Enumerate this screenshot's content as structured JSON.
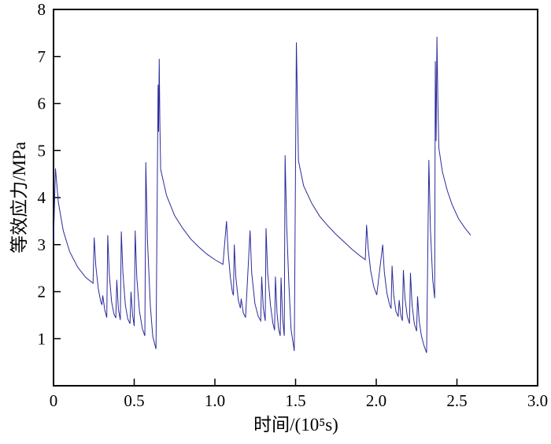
{
  "figure": {
    "xlabel": "时间/(10⁵s)",
    "ylabel": "等效应力/MPa",
    "background": "#ffffff"
  },
  "chart_data": {
    "type": "line",
    "title": "",
    "xlabel": "时间/(10⁵s)",
    "ylabel": "等效应力/MPa",
    "xlim": [
      0,
      3.0
    ],
    "ylim": [
      0,
      8
    ],
    "x_ticks": [
      0,
      0.5,
      1.0,
      1.5,
      2.0,
      2.5,
      3.0
    ],
    "x_tick_labels": [
      "0",
      "0.5",
      "1.0",
      "1.5",
      "2.0",
      "2.5",
      "3.0"
    ],
    "y_ticks": [
      1,
      2,
      3,
      4,
      5,
      6,
      7,
      8
    ],
    "y_tick_labels": [
      "1",
      "2",
      "3",
      "4",
      "5",
      "6",
      "7",
      "8"
    ],
    "grid": false,
    "legend": null,
    "line_color": "#2b2b9b",
    "axis_color": "#000000",
    "series": [
      {
        "name": "等效应力",
        "points": [
          [
            0.0,
            3.05
          ],
          [
            0.012,
            4.62
          ],
          [
            0.03,
            3.9
          ],
          [
            0.06,
            3.3
          ],
          [
            0.1,
            2.85
          ],
          [
            0.15,
            2.52
          ],
          [
            0.2,
            2.3
          ],
          [
            0.245,
            2.18
          ],
          [
            0.252,
            3.15
          ],
          [
            0.262,
            2.55
          ],
          [
            0.278,
            2.05
          ],
          [
            0.292,
            1.8
          ],
          [
            0.3,
            1.72
          ],
          [
            0.305,
            1.92
          ],
          [
            0.318,
            1.6
          ],
          [
            0.33,
            1.45
          ],
          [
            0.336,
            3.2
          ],
          [
            0.346,
            2.35
          ],
          [
            0.36,
            1.78
          ],
          [
            0.375,
            1.52
          ],
          [
            0.386,
            1.44
          ],
          [
            0.392,
            2.25
          ],
          [
            0.402,
            1.62
          ],
          [
            0.414,
            1.4
          ],
          [
            0.42,
            3.28
          ],
          [
            0.43,
            2.4
          ],
          [
            0.445,
            1.72
          ],
          [
            0.46,
            1.42
          ],
          [
            0.474,
            1.32
          ],
          [
            0.48,
            2.0
          ],
          [
            0.49,
            1.5
          ],
          [
            0.5,
            1.27
          ],
          [
            0.506,
            3.3
          ],
          [
            0.516,
            2.3
          ],
          [
            0.532,
            1.6
          ],
          [
            0.55,
            1.22
          ],
          [
            0.566,
            1.06
          ],
          [
            0.572,
            4.75
          ],
          [
            0.582,
            3.1
          ],
          [
            0.6,
            1.7
          ],
          [
            0.615,
            1.05
          ],
          [
            0.635,
            0.78
          ],
          [
            0.648,
            6.4
          ],
          [
            0.651,
            5.4
          ],
          [
            0.655,
            6.95
          ],
          [
            0.659,
            5.6
          ],
          [
            0.664,
            4.6
          ],
          [
            0.7,
            4.05
          ],
          [
            0.75,
            3.62
          ],
          [
            0.8,
            3.35
          ],
          [
            0.85,
            3.12
          ],
          [
            0.9,
            2.95
          ],
          [
            0.95,
            2.8
          ],
          [
            1.0,
            2.68
          ],
          [
            1.05,
            2.58
          ],
          [
            1.072,
            3.5
          ],
          [
            1.082,
            2.85
          ],
          [
            1.096,
            2.3
          ],
          [
            1.108,
            2.0
          ],
          [
            1.115,
            1.92
          ],
          [
            1.12,
            3.0
          ],
          [
            1.13,
            2.3
          ],
          [
            1.145,
            1.82
          ],
          [
            1.158,
            1.65
          ],
          [
            1.163,
            1.85
          ],
          [
            1.176,
            1.55
          ],
          [
            1.19,
            1.45
          ],
          [
            1.218,
            3.3
          ],
          [
            1.228,
            2.4
          ],
          [
            1.248,
            1.75
          ],
          [
            1.268,
            1.48
          ],
          [
            1.284,
            1.38
          ],
          [
            1.29,
            2.32
          ],
          [
            1.3,
            1.65
          ],
          [
            1.312,
            1.38
          ],
          [
            1.317,
            3.35
          ],
          [
            1.327,
            2.4
          ],
          [
            1.345,
            1.7
          ],
          [
            1.36,
            1.32
          ],
          [
            1.37,
            1.18
          ],
          [
            1.375,
            2.32
          ],
          [
            1.385,
            1.55
          ],
          [
            1.395,
            1.2
          ],
          [
            1.405,
            1.06
          ],
          [
            1.41,
            2.3
          ],
          [
            1.42,
            1.42
          ],
          [
            1.43,
            1.06
          ],
          [
            1.435,
            4.9
          ],
          [
            1.445,
            3.4
          ],
          [
            1.458,
            2.2
          ],
          [
            1.472,
            1.2
          ],
          [
            1.492,
            0.74
          ],
          [
            1.505,
            7.3
          ],
          [
            1.512,
            5.9
          ],
          [
            1.518,
            4.78
          ],
          [
            1.55,
            4.25
          ],
          [
            1.6,
            3.88
          ],
          [
            1.65,
            3.6
          ],
          [
            1.7,
            3.4
          ],
          [
            1.75,
            3.22
          ],
          [
            1.8,
            3.06
          ],
          [
            1.85,
            2.9
          ],
          [
            1.9,
            2.76
          ],
          [
            1.932,
            2.68
          ],
          [
            1.94,
            3.42
          ],
          [
            1.95,
            2.92
          ],
          [
            1.965,
            2.45
          ],
          [
            1.985,
            2.1
          ],
          [
            2.003,
            1.93
          ],
          [
            2.04,
            3.0
          ],
          [
            2.05,
            2.42
          ],
          [
            2.066,
            1.97
          ],
          [
            2.082,
            1.73
          ],
          [
            2.092,
            1.64
          ],
          [
            2.098,
            2.55
          ],
          [
            2.108,
            1.93
          ],
          [
            2.122,
            1.58
          ],
          [
            2.136,
            1.47
          ],
          [
            2.142,
            1.82
          ],
          [
            2.152,
            1.5
          ],
          [
            2.162,
            1.38
          ],
          [
            2.168,
            2.46
          ],
          [
            2.178,
            1.86
          ],
          [
            2.192,
            1.48
          ],
          [
            2.206,
            1.32
          ],
          [
            2.212,
            2.4
          ],
          [
            2.222,
            1.72
          ],
          [
            2.236,
            1.32
          ],
          [
            2.25,
            1.16
          ],
          [
            2.256,
            1.9
          ],
          [
            2.266,
            1.38
          ],
          [
            2.28,
            1.06
          ],
          [
            2.296,
            0.85
          ],
          [
            2.312,
            0.7
          ],
          [
            2.326,
            4.8
          ],
          [
            2.336,
            3.3
          ],
          [
            2.35,
            2.25
          ],
          [
            2.362,
            1.86
          ],
          [
            2.366,
            6.9
          ],
          [
            2.371,
            5.2
          ],
          [
            2.376,
            7.42
          ],
          [
            2.382,
            6.0
          ],
          [
            2.388,
            5.05
          ],
          [
            2.41,
            4.55
          ],
          [
            2.44,
            4.15
          ],
          [
            2.47,
            3.85
          ],
          [
            2.51,
            3.55
          ],
          [
            2.55,
            3.35
          ],
          [
            2.585,
            3.2
          ]
        ]
      }
    ]
  }
}
